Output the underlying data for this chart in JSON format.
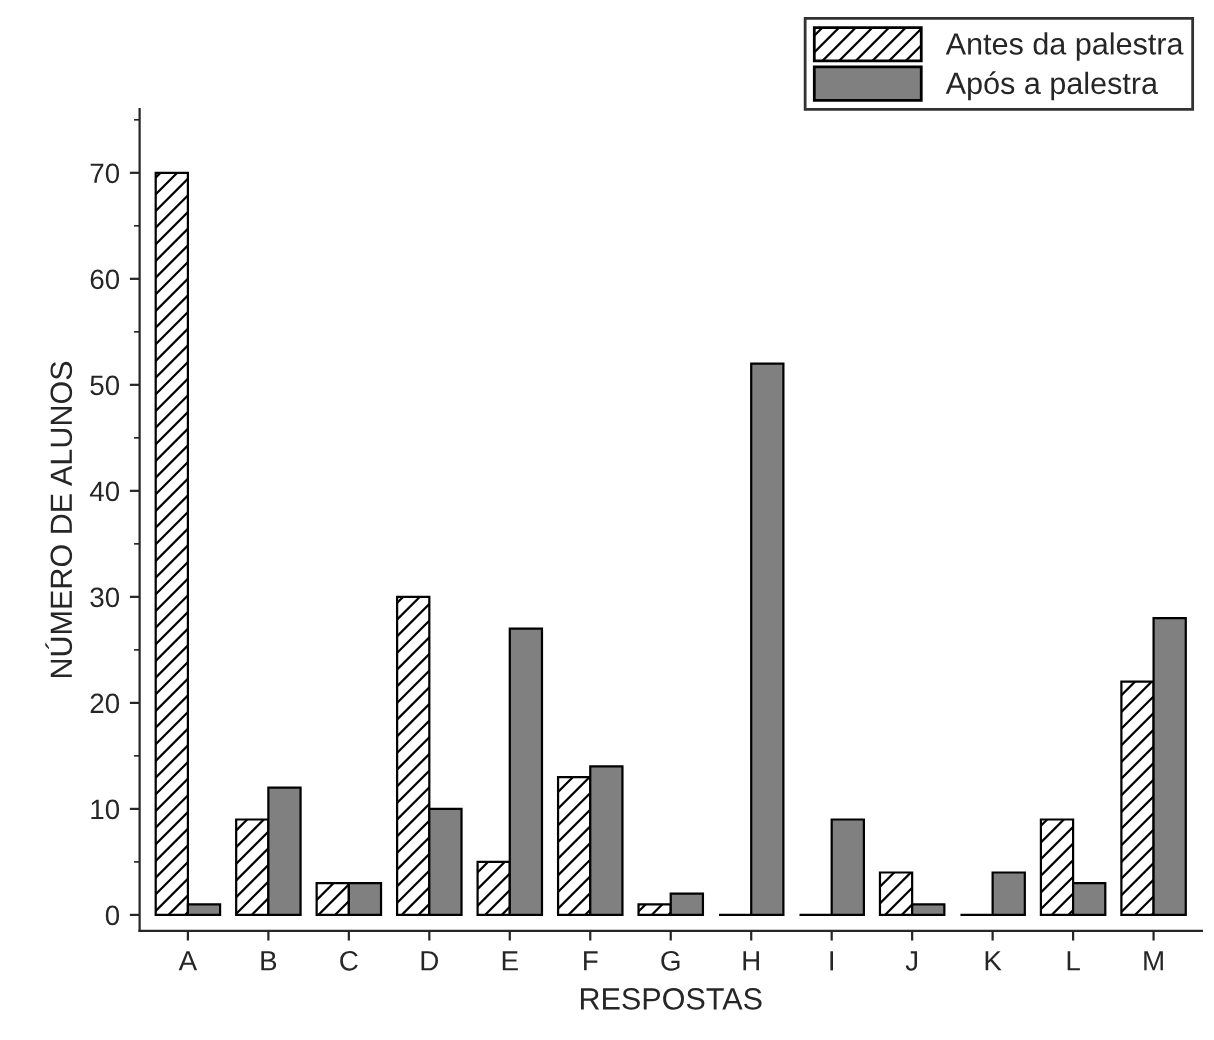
{
  "chart_data": {
    "type": "bar",
    "xlabel": "RESPOSTAS",
    "ylabel": "NÚMERO DE ALUNOS",
    "categories": [
      "A",
      "B",
      "C",
      "D",
      "E",
      "F",
      "G",
      "H",
      "I",
      "J",
      "K",
      "L",
      "M"
    ],
    "series": [
      {
        "name": "Antes da palestra",
        "color": "#000000",
        "values": [
          70,
          9,
          3,
          30,
          5,
          13,
          1,
          0,
          0,
          4,
          0,
          9,
          22
        ]
      },
      {
        "name": "Após a palestra",
        "color": "#808080",
        "values": [
          1,
          12,
          3,
          10,
          27,
          14,
          2,
          52,
          9,
          1,
          4,
          3,
          28
        ]
      }
    ],
    "ylim": [
      -1.5,
      76
    ],
    "yticks": [
      0,
      10,
      20,
      30,
      40,
      50,
      60,
      70
    ],
    "grid": false,
    "legend": "top right"
  }
}
